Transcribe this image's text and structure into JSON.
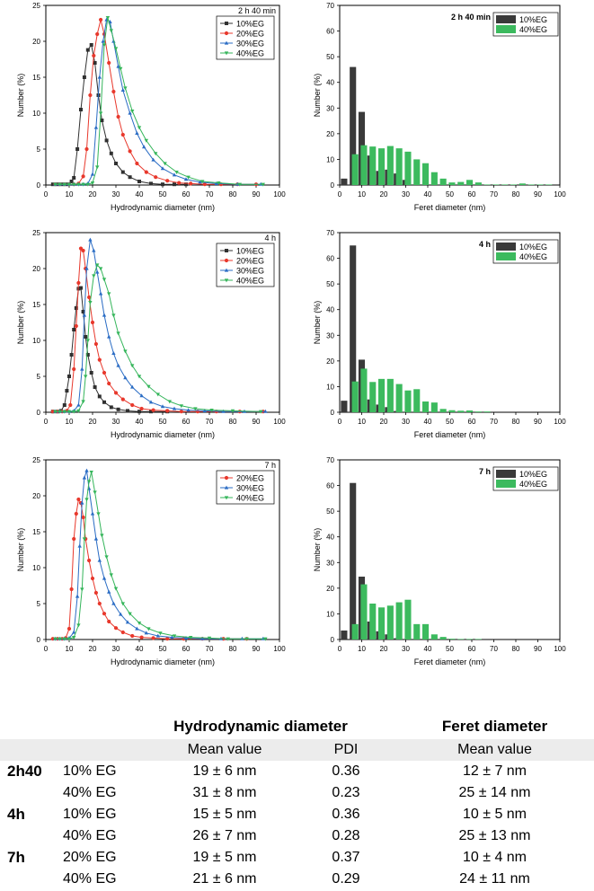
{
  "colors": {
    "10%EG": "#303030",
    "20%EG": "#e8382c",
    "30%EG": "#2a6cc4",
    "40%EG": "#34b55a",
    "bar_10%EG": "#3a3a3a",
    "bar_40%EG": "#3cba5e"
  },
  "chart_data": [
    {
      "id": "dls-2h40",
      "type": "line",
      "annotation": "2 h 40 min",
      "xlabel": "Hydrodynamic diameter (nm)",
      "ylabel": "Number (%)",
      "xlim": [
        0,
        100
      ],
      "ylim": [
        0,
        25
      ],
      "xticks": [
        0,
        10,
        20,
        30,
        40,
        50,
        60,
        70,
        80,
        90,
        100
      ],
      "yticks": [
        0,
        5,
        10,
        15,
        20,
        25
      ],
      "legend_position": "top-right",
      "series": [
        {
          "name": "10%EG",
          "marker": "square",
          "x": [
            3,
            5,
            7,
            9,
            11,
            12,
            13.5,
            15,
            16.5,
            18,
            19.5,
            21,
            22.5,
            24,
            26,
            28,
            30,
            33,
            36,
            40,
            45,
            50,
            55,
            60
          ],
          "y": [
            0.1,
            0.1,
            0.1,
            0.1,
            0.5,
            1,
            5,
            10.5,
            15,
            18.8,
            19.5,
            17,
            12.5,
            9,
            6.2,
            4.4,
            3,
            1.8,
            1.1,
            0.5,
            0.2,
            0.1,
            0.1,
            0.1
          ]
        },
        {
          "name": "20%EG",
          "marker": "circle",
          "x": [
            4,
            6,
            8,
            10,
            12,
            14,
            16,
            17.5,
            19,
            20.5,
            22,
            23.5,
            25,
            27,
            29,
            31,
            33,
            36,
            39,
            43,
            47,
            52,
            57,
            62,
            68,
            75,
            82,
            90
          ],
          "y": [
            0.1,
            0.1,
            0.1,
            0.1,
            0.1,
            0.2,
            1.2,
            5,
            12.5,
            18,
            21,
            23,
            21,
            17,
            13,
            9.5,
            7,
            4.7,
            3,
            1.8,
            1.1,
            0.6,
            0.3,
            0.2,
            0.1,
            0.1,
            0.1,
            0.1
          ]
        },
        {
          "name": "30%EG",
          "marker": "triangle-up",
          "x": [
            4,
            6,
            8,
            10,
            12,
            14,
            16,
            18,
            20,
            21.5,
            23,
            24.5,
            26,
            27.5,
            29,
            31,
            33,
            36,
            39,
            42,
            46,
            50,
            55,
            60,
            66,
            73,
            82,
            92
          ],
          "y": [
            0.1,
            0.1,
            0.1,
            0.1,
            0.1,
            0.1,
            0.1,
            0.2,
            1.5,
            8,
            15,
            20,
            23,
            22.7,
            20,
            16.5,
            13.2,
            10,
            7.2,
            5.3,
            3.5,
            2.3,
            1.4,
            0.8,
            0.4,
            0.2,
            0.1,
            0.1
          ]
        },
        {
          "name": "40%EG",
          "marker": "triangle-down",
          "x": [
            4,
            6,
            8,
            10,
            12,
            14,
            16,
            18,
            20,
            22,
            23.5,
            25,
            26.5,
            28,
            30,
            32,
            34,
            37,
            40,
            43,
            47,
            51,
            56,
            61,
            67,
            74,
            83,
            93
          ],
          "y": [
            0.1,
            0.1,
            0.1,
            0.1,
            0.1,
            0.1,
            0.1,
            0.1,
            0.3,
            2.5,
            10,
            19.5,
            23.3,
            21.5,
            19,
            16.2,
            13.5,
            10.3,
            8,
            6.2,
            4.4,
            3,
            1.8,
            1.1,
            0.5,
            0.3,
            0.1,
            0.1
          ]
        }
      ]
    },
    {
      "id": "feret-2h40",
      "type": "bar",
      "annotation": "2 h 40 min",
      "xlabel": "Feret diameter (nm)",
      "ylabel": "Number (%)",
      "xlim": [
        0,
        100
      ],
      "ylim": [
        0,
        70
      ],
      "xticks": [
        0,
        10,
        20,
        30,
        40,
        50,
        60,
        70,
        80,
        90,
        100
      ],
      "yticks": [
        0,
        10,
        20,
        30,
        40,
        50,
        60,
        70
      ],
      "legend_position": "top-right",
      "bin_width": 2.9,
      "series": [
        {
          "name": "10%EG",
          "x": [
            2,
            6,
            10,
            14,
            18,
            22,
            26,
            30
          ],
          "values": [
            2.5,
            46,
            28.5,
            11.5,
            5.5,
            6,
            4.5,
            2
          ]
        },
        {
          "name": "40%EG",
          "x": [
            7,
            11,
            15,
            19,
            23,
            27,
            31,
            35,
            39,
            43,
            47,
            51,
            55,
            59,
            63,
            67,
            71,
            75,
            79,
            83,
            87,
            91,
            95
          ],
          "values": [
            12,
            15.5,
            15,
            14.3,
            15.2,
            14.3,
            13,
            10,
            8.5,
            5,
            2.5,
            1,
            1.2,
            2,
            1,
            0.2,
            0.2,
            0.2,
            0.2,
            0.6,
            0.2,
            0.2,
            0.2
          ]
        }
      ]
    },
    {
      "id": "dls-4h",
      "type": "line",
      "annotation": "4 h",
      "xlabel": "Hydrodynamic diameter (nm)",
      "ylabel": "Number (%)",
      "xlim": [
        0,
        100
      ],
      "ylim": [
        0,
        25
      ],
      "xticks": [
        0,
        10,
        20,
        30,
        40,
        50,
        60,
        70,
        80,
        90,
        100
      ],
      "yticks": [
        0,
        5,
        10,
        15,
        20,
        25
      ],
      "legend_position": "top-right",
      "series": [
        {
          "name": "10%EG",
          "marker": "square",
          "x": [
            3,
            5,
            6.5,
            8,
            9,
            10,
            11,
            12,
            13,
            14,
            15,
            16,
            17,
            18,
            19.5,
            21,
            23,
            25,
            28,
            31,
            35,
            40,
            45,
            52
          ],
          "y": [
            0.1,
            0.1,
            0.2,
            1,
            3,
            5,
            8,
            11.5,
            14.5,
            17.2,
            17.3,
            14,
            10.5,
            8,
            5.5,
            3.5,
            2.2,
            1.4,
            0.7,
            0.4,
            0.2,
            0.1,
            0.1,
            0.1
          ]
        },
        {
          "name": "20%EG",
          "marker": "circle",
          "x": [
            3,
            5,
            7,
            9,
            10.5,
            12,
            13,
            14,
            15,
            16,
            17,
            18.5,
            20,
            21.5,
            23,
            25,
            27,
            30,
            33,
            37,
            41,
            46,
            52,
            58,
            65,
            73,
            83,
            93
          ],
          "y": [
            0.1,
            0.1,
            0.1,
            0.2,
            1,
            6,
            12,
            18,
            22.8,
            22.5,
            20,
            16,
            12.5,
            9.5,
            7.3,
            5.5,
            4,
            2.7,
            1.8,
            1,
            0.5,
            0.3,
            0.2,
            0.1,
            0.1,
            0.1,
            0.1,
            0.1
          ]
        },
        {
          "name": "30%EG",
          "marker": "triangle-up",
          "x": [
            4,
            6,
            8,
            10,
            12,
            14,
            15.5,
            16.5,
            17.5,
            19,
            20.5,
            22,
            23.5,
            25,
            27,
            29,
            31,
            34,
            37,
            41,
            45,
            50,
            55,
            61,
            68,
            76,
            85,
            94
          ],
          "y": [
            0.1,
            0.1,
            0.1,
            0.1,
            0.2,
            1,
            6,
            13.5,
            20,
            24,
            22.5,
            19.5,
            16.5,
            13.5,
            10.5,
            8.2,
            6.5,
            4.8,
            3.5,
            2.3,
            1.4,
            0.8,
            0.5,
            0.3,
            0.2,
            0.1,
            0.1,
            0.1
          ]
        },
        {
          "name": "40%EG",
          "marker": "triangle-down",
          "x": [
            4,
            6,
            8,
            10,
            12,
            14,
            16,
            17,
            18,
            19,
            20.5,
            22,
            23.5,
            25,
            27,
            29,
            31,
            34,
            37,
            40,
            44,
            48,
            53,
            58,
            64,
            71,
            80,
            92
          ],
          "y": [
            0.1,
            0.1,
            0.1,
            0.1,
            0.1,
            0.2,
            1.5,
            5,
            10,
            15.3,
            19,
            20.5,
            20,
            18.5,
            16.5,
            13.5,
            11,
            8.5,
            6.5,
            5,
            3.6,
            2.5,
            1.5,
            0.9,
            0.5,
            0.3,
            0.2,
            0.1
          ]
        }
      ]
    },
    {
      "id": "feret-4h",
      "type": "bar",
      "annotation": "4 h",
      "xlabel": "Feret diameter (nm)",
      "ylabel": "Number (%)",
      "xlim": [
        0,
        100
      ],
      "ylim": [
        0,
        70
      ],
      "xticks": [
        0,
        10,
        20,
        30,
        40,
        50,
        60,
        70,
        80,
        90,
        100
      ],
      "yticks": [
        0,
        10,
        20,
        30,
        40,
        50,
        60,
        70
      ],
      "legend_position": "top-right",
      "bin_width": 2.9,
      "series": [
        {
          "name": "10%EG",
          "x": [
            2,
            6,
            10,
            14,
            18,
            22,
            26
          ],
          "values": [
            4.5,
            65,
            20.5,
            5,
            3,
            2,
            0.5
          ]
        },
        {
          "name": "40%EG",
          "x": [
            7,
            11,
            15,
            19,
            23,
            27,
            31,
            35,
            39,
            43,
            47,
            51,
            55,
            59,
            63,
            67
          ],
          "values": [
            12,
            17,
            11.8,
            13,
            13,
            11,
            8.5,
            9,
            4.2,
            3.8,
            1.3,
            0.8,
            0.6,
            0.7,
            0.3,
            0.3
          ]
        }
      ]
    },
    {
      "id": "dls-7h",
      "type": "line",
      "annotation": "7 h",
      "xlabel": "Hydrodynamic diameter (nm)",
      "ylabel": "Number (%)",
      "xlim": [
        0,
        100
      ],
      "ylim": [
        0,
        25
      ],
      "xticks": [
        0,
        10,
        20,
        30,
        40,
        50,
        60,
        70,
        80,
        90,
        100
      ],
      "yticks": [
        0,
        5,
        10,
        15,
        20,
        25
      ],
      "legend_position": "top-right",
      "series": [
        {
          "name": "20%EG",
          "marker": "circle",
          "x": [
            3,
            5,
            7,
            8.5,
            10,
            11,
            12,
            13,
            14,
            15,
            16,
            17,
            18.5,
            20,
            21.5,
            23,
            25,
            27,
            30,
            33,
            37,
            41,
            46,
            52,
            59,
            67,
            76,
            86
          ],
          "y": [
            0.1,
            0.1,
            0.1,
            0.2,
            1.5,
            7,
            14,
            17.5,
            19.5,
            19,
            17,
            14,
            11,
            8.5,
            6.5,
            5,
            3.6,
            2.5,
            1.6,
            1,
            0.5,
            0.3,
            0.2,
            0.1,
            0.1,
            0.1,
            0.1,
            0.1
          ]
        },
        {
          "name": "30%EG",
          "marker": "triangle-up",
          "x": [
            4,
            6,
            8,
            10,
            12,
            13.5,
            14.5,
            15.5,
            16.5,
            17.5,
            18.5,
            20,
            21.5,
            23,
            25,
            27,
            29,
            32,
            35,
            39,
            43,
            48,
            54,
            60,
            67,
            75,
            84,
            93
          ],
          "y": [
            0.1,
            0.1,
            0.1,
            0.2,
            1,
            6,
            13,
            19,
            22.5,
            23.5,
            21,
            17.5,
            14,
            11,
            8.5,
            6.6,
            5,
            3.5,
            2.4,
            1.5,
            0.9,
            0.5,
            0.3,
            0.2,
            0.1,
            0.1,
            0.1,
            0.1
          ]
        },
        {
          "name": "40%EG",
          "marker": "triangle-down",
          "x": [
            4,
            6,
            8,
            10,
            12,
            14,
            15.5,
            16.5,
            17.5,
            18.5,
            19.5,
            21,
            22.5,
            24,
            26,
            28,
            30,
            33,
            36,
            40,
            44,
            49,
            55,
            62,
            70,
            78,
            86,
            94
          ],
          "y": [
            0.1,
            0.1,
            0.1,
            0.1,
            0.3,
            2,
            7,
            14,
            19.5,
            22,
            23.3,
            20.5,
            17.5,
            14.5,
            11.5,
            9,
            7.1,
            5,
            3.6,
            2.3,
            1.5,
            0.9,
            0.5,
            0.3,
            0.2,
            0.1,
            0.1,
            0.1
          ]
        }
      ]
    },
    {
      "id": "feret-7h",
      "type": "bar",
      "annotation": "7 h",
      "xlabel": "Feret diameter (nm)",
      "ylabel": "Number (%)",
      "xlim": [
        0,
        100
      ],
      "ylim": [
        0,
        70
      ],
      "xticks": [
        0,
        10,
        20,
        30,
        40,
        50,
        60,
        70,
        80,
        90,
        100
      ],
      "yticks": [
        0,
        10,
        20,
        30,
        40,
        50,
        60,
        70
      ],
      "legend_position": "top-right",
      "bin_width": 2.9,
      "series": [
        {
          "name": "10%EG",
          "x": [
            2,
            6,
            10,
            14,
            18,
            22,
            26
          ],
          "values": [
            3.5,
            61,
            24.5,
            7,
            3.2,
            2,
            0.5
          ]
        },
        {
          "name": "40%EG",
          "x": [
            7,
            11,
            15,
            19,
            23,
            27,
            31,
            35,
            39,
            43,
            47,
            51,
            55,
            59,
            63
          ],
          "values": [
            6,
            21.5,
            14,
            12.5,
            13.2,
            14.5,
            15.5,
            6,
            6,
            2,
            1,
            0.3,
            0.2,
            0.2,
            0.2
          ]
        }
      ]
    }
  ],
  "table": {
    "headers": {
      "hydrodynamic": "Hydrodynamic diameter",
      "feret": "Feret diameter"
    },
    "subheaders": {
      "hd_mean": "Mean value",
      "pdi": "PDI",
      "fd_mean": "Mean value"
    },
    "rows": [
      {
        "time": "2h40",
        "sample": "10% EG",
        "hd_mean": "19 ± 6 nm",
        "pdi": "0.36",
        "fd_mean": "12 ± 7 nm"
      },
      {
        "time": "",
        "sample": "40% EG",
        "hd_mean": "31 ± 8 nm",
        "pdi": "0.23",
        "fd_mean": "25 ± 14 nm"
      },
      {
        "time": "4h",
        "sample": "10% EG",
        "hd_mean": "15 ± 5 nm",
        "pdi": "0.36",
        "fd_mean": "10 ± 5 nm"
      },
      {
        "time": "",
        "sample": "40% EG",
        "hd_mean": "26 ± 7 nm",
        "pdi": "0.28",
        "fd_mean": "25 ± 13 nm"
      },
      {
        "time": "7h",
        "sample": "20% EG",
        "hd_mean": "19 ± 5 nm",
        "pdi": "0.37",
        "fd_mean": "10 ± 4 nm"
      },
      {
        "time": "",
        "sample": "40% EG",
        "hd_mean": "21 ± 6 nm",
        "pdi": "0.29",
        "fd_mean": "24 ± 11 nm"
      }
    ]
  }
}
